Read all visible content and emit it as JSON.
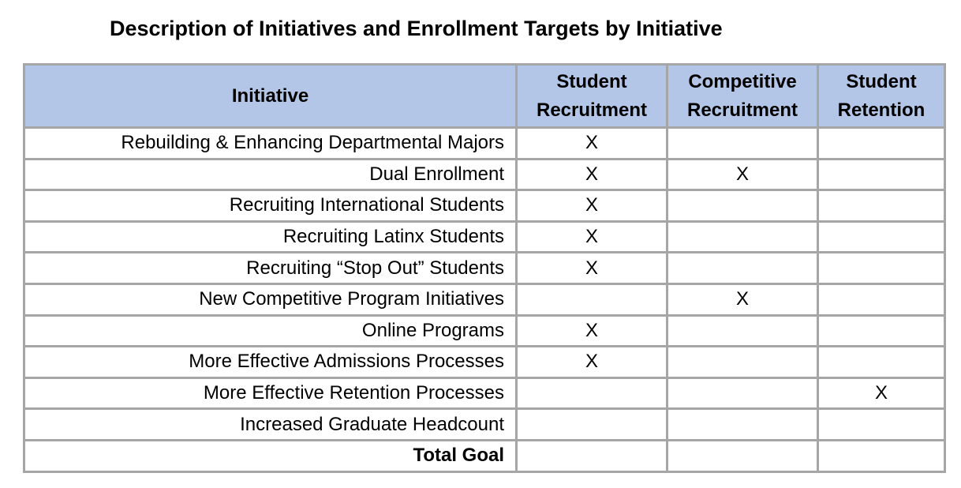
{
  "title": "Description of Initiatives and Enrollment Targets by Initiative",
  "table": {
    "headers": [
      "Initiative",
      "Student Recruitment",
      "Competitive Recruitment",
      "Student Retention"
    ],
    "rows": [
      {
        "initiative": "Rebuilding & Enhancing Departmental Majors",
        "student_recruitment": "X",
        "competitive_recruitment": "",
        "student_retention": ""
      },
      {
        "initiative": "Dual Enrollment",
        "student_recruitment": "X",
        "competitive_recruitment": "X",
        "student_retention": ""
      },
      {
        "initiative": "Recruiting International Students",
        "student_recruitment": "X",
        "competitive_recruitment": "",
        "student_retention": ""
      },
      {
        "initiative": "Recruiting Latinx Students",
        "student_recruitment": "X",
        "competitive_recruitment": "",
        "student_retention": ""
      },
      {
        "initiative": "Recruiting “Stop Out” Students",
        "student_recruitment": "X",
        "competitive_recruitment": "",
        "student_retention": ""
      },
      {
        "initiative": "New Competitive Program Initiatives",
        "student_recruitment": "",
        "competitive_recruitment": "X",
        "student_retention": ""
      },
      {
        "initiative": "Online Programs",
        "student_recruitment": "X",
        "competitive_recruitment": "",
        "student_retention": ""
      },
      {
        "initiative": "More Effective Admissions Processes",
        "student_recruitment": "X",
        "competitive_recruitment": "",
        "student_retention": ""
      },
      {
        "initiative": "More Effective Retention Processes",
        "student_recruitment": "",
        "competitive_recruitment": "",
        "student_retention": "X"
      },
      {
        "initiative": "Increased Graduate Headcount",
        "student_recruitment": "",
        "competitive_recruitment": "",
        "student_retention": ""
      },
      {
        "initiative": "Total Goal",
        "student_recruitment": "",
        "competitive_recruitment": "",
        "student_retention": ""
      }
    ]
  },
  "colors": {
    "header_fill": "#b4c6e7",
    "grid_line": "#a6a6a6"
  }
}
